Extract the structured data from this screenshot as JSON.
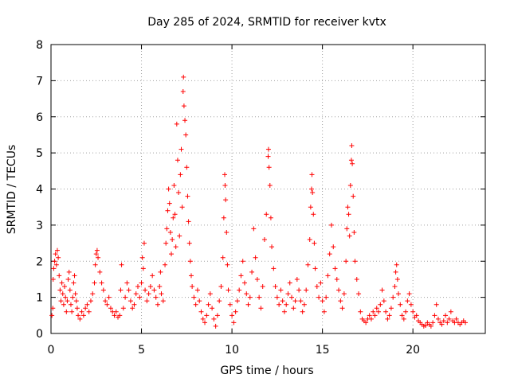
{
  "chart_data": {
    "type": "scatter",
    "title": "Day 285 of 2024, SRMTID for receiver kvtx",
    "xlabel": "GPS time / hours",
    "ylabel": "SRMTID / TECUs",
    "xlim": [
      0,
      24
    ],
    "ylim": [
      0,
      8
    ],
    "xticks": [
      0,
      5,
      10,
      15,
      20
    ],
    "yticks": [
      0,
      1,
      2,
      3,
      4,
      5,
      6,
      7,
      8
    ],
    "grid": true,
    "marker": "plus",
    "marker_color": "#ff0000",
    "series": [
      {
        "name": "SRMTID",
        "points": [
          [
            0.05,
            0.5
          ],
          [
            0.1,
            0.7
          ],
          [
            0.12,
            1.5
          ],
          [
            0.15,
            1.8
          ],
          [
            0.2,
            2.0
          ],
          [
            0.25,
            2.2
          ],
          [
            0.3,
            1.9
          ],
          [
            0.35,
            2.3
          ],
          [
            0.4,
            2.1
          ],
          [
            0.45,
            1.6
          ],
          [
            0.5,
            1.2
          ],
          [
            0.55,
            0.9
          ],
          [
            0.6,
            1.4
          ],
          [
            0.65,
            1.1
          ],
          [
            0.7,
            0.8
          ],
          [
            0.75,
            1.3
          ],
          [
            0.8,
            1.0
          ],
          [
            0.85,
            0.6
          ],
          [
            0.9,
            0.9
          ],
          [
            0.95,
            1.5
          ],
          [
            1.0,
            1.7
          ],
          [
            1.05,
            1.2
          ],
          [
            1.1,
            0.8
          ],
          [
            1.15,
            0.6
          ],
          [
            1.2,
            1.0
          ],
          [
            1.25,
            1.4
          ],
          [
            1.3,
            1.6
          ],
          [
            1.35,
            1.1
          ],
          [
            1.4,
            0.9
          ],
          [
            1.45,
            0.7
          ],
          [
            1.5,
            0.5
          ],
          [
            1.6,
            0.4
          ],
          [
            1.7,
            0.6
          ],
          [
            1.8,
            0.5
          ],
          [
            1.9,
            0.7
          ],
          [
            2.0,
            0.8
          ],
          [
            2.1,
            0.6
          ],
          [
            2.2,
            0.9
          ],
          [
            2.3,
            1.1
          ],
          [
            2.4,
            1.4
          ],
          [
            2.45,
            1.9
          ],
          [
            2.5,
            2.2
          ],
          [
            2.55,
            2.3
          ],
          [
            2.6,
            2.1
          ],
          [
            2.7,
            1.7
          ],
          [
            2.8,
            1.4
          ],
          [
            2.9,
            1.2
          ],
          [
            3.0,
            0.9
          ],
          [
            3.1,
            0.8
          ],
          [
            3.2,
            1.0
          ],
          [
            3.3,
            0.7
          ],
          [
            3.4,
            0.6
          ],
          [
            3.5,
            0.5
          ],
          [
            3.6,
            0.6
          ],
          [
            3.7,
            0.45
          ],
          [
            3.8,
            0.5
          ],
          [
            3.85,
            1.2
          ],
          [
            3.9,
            1.9
          ],
          [
            4.0,
            0.7
          ],
          [
            4.1,
            1.0
          ],
          [
            4.2,
            1.4
          ],
          [
            4.3,
            1.2
          ],
          [
            4.4,
            0.9
          ],
          [
            4.5,
            0.7
          ],
          [
            4.6,
            0.8
          ],
          [
            4.7,
            1.1
          ],
          [
            4.8,
            1.3
          ],
          [
            4.9,
            1.0
          ],
          [
            5.0,
            1.4
          ],
          [
            5.05,
            2.1
          ],
          [
            5.1,
            1.8
          ],
          [
            5.15,
            2.5
          ],
          [
            5.2,
            1.2
          ],
          [
            5.3,
            0.9
          ],
          [
            5.4,
            1.1
          ],
          [
            5.5,
            1.3
          ],
          [
            5.6,
            1.6
          ],
          [
            5.7,
            1.2
          ],
          [
            5.8,
            1.0
          ],
          [
            5.9,
            0.8
          ],
          [
            6.0,
            1.3
          ],
          [
            6.05,
            1.7
          ],
          [
            6.1,
            1.1
          ],
          [
            6.2,
            0.9
          ],
          [
            6.3,
            1.9
          ],
          [
            6.35,
            2.5
          ],
          [
            6.4,
            2.9
          ],
          [
            6.45,
            3.4
          ],
          [
            6.5,
            4.0
          ],
          [
            6.55,
            3.6
          ],
          [
            6.6,
            2.8
          ],
          [
            6.65,
            2.2
          ],
          [
            6.7,
            2.6
          ],
          [
            6.75,
            3.2
          ],
          [
            6.8,
            4.1
          ],
          [
            6.85,
            3.3
          ],
          [
            6.9,
            2.4
          ],
          [
            6.95,
            5.8
          ],
          [
            7.0,
            4.8
          ],
          [
            7.05,
            3.9
          ],
          [
            7.1,
            2.7
          ],
          [
            7.15,
            4.4
          ],
          [
            7.2,
            5.1
          ],
          [
            7.25,
            3.5
          ],
          [
            7.3,
            6.7
          ],
          [
            7.32,
            7.1
          ],
          [
            7.35,
            6.3
          ],
          [
            7.4,
            5.9
          ],
          [
            7.45,
            5.5
          ],
          [
            7.5,
            4.6
          ],
          [
            7.55,
            3.8
          ],
          [
            7.6,
            3.1
          ],
          [
            7.65,
            2.5
          ],
          [
            7.7,
            2.0
          ],
          [
            7.75,
            1.6
          ],
          [
            7.8,
            1.3
          ],
          [
            7.9,
            1.0
          ],
          [
            8.0,
            0.8
          ],
          [
            8.1,
            1.2
          ],
          [
            8.2,
            0.9
          ],
          [
            8.3,
            0.6
          ],
          [
            8.4,
            0.4
          ],
          [
            8.5,
            0.3
          ],
          [
            8.6,
            0.5
          ],
          [
            8.7,
            0.8
          ],
          [
            8.8,
            1.1
          ],
          [
            8.9,
            0.7
          ],
          [
            9.0,
            0.4
          ],
          [
            9.1,
            0.2
          ],
          [
            9.2,
            0.5
          ],
          [
            9.3,
            0.9
          ],
          [
            9.4,
            1.3
          ],
          [
            9.5,
            2.1
          ],
          [
            9.55,
            3.2
          ],
          [
            9.6,
            4.4
          ],
          [
            9.62,
            4.1
          ],
          [
            9.65,
            3.7
          ],
          [
            9.7,
            2.8
          ],
          [
            9.75,
            1.9
          ],
          [
            9.8,
            1.2
          ],
          [
            9.9,
            0.8
          ],
          [
            10.0,
            0.5
          ],
          [
            10.1,
            0.3
          ],
          [
            10.2,
            0.6
          ],
          [
            10.3,
            0.9
          ],
          [
            10.4,
            1.2
          ],
          [
            10.5,
            1.6
          ],
          [
            10.6,
            2.0
          ],
          [
            10.7,
            1.4
          ],
          [
            10.8,
            1.1
          ],
          [
            10.9,
            0.8
          ],
          [
            11.0,
            1.0
          ],
          [
            11.1,
            1.7
          ],
          [
            11.2,
            2.9
          ],
          [
            11.3,
            2.1
          ],
          [
            11.4,
            1.5
          ],
          [
            11.5,
            1.0
          ],
          [
            11.6,
            0.7
          ],
          [
            11.7,
            1.3
          ],
          [
            11.8,
            2.6
          ],
          [
            11.9,
            3.3
          ],
          [
            12.0,
            4.9
          ],
          [
            12.02,
            5.1
          ],
          [
            12.05,
            4.6
          ],
          [
            12.1,
            4.1
          ],
          [
            12.15,
            3.2
          ],
          [
            12.2,
            2.4
          ],
          [
            12.3,
            1.8
          ],
          [
            12.4,
            1.3
          ],
          [
            12.5,
            1.0
          ],
          [
            12.6,
            0.8
          ],
          [
            12.7,
            1.2
          ],
          [
            12.8,
            0.9
          ],
          [
            12.9,
            0.6
          ],
          [
            13.0,
            0.8
          ],
          [
            13.1,
            1.1
          ],
          [
            13.2,
            1.4
          ],
          [
            13.3,
            1.0
          ],
          [
            13.4,
            0.7
          ],
          [
            13.5,
            0.9
          ],
          [
            13.6,
            1.5
          ],
          [
            13.7,
            1.2
          ],
          [
            13.8,
            0.9
          ],
          [
            13.9,
            0.6
          ],
          [
            14.0,
            0.8
          ],
          [
            14.1,
            1.2
          ],
          [
            14.2,
            1.9
          ],
          [
            14.3,
            2.6
          ],
          [
            14.35,
            3.5
          ],
          [
            14.4,
            4.0
          ],
          [
            14.42,
            4.4
          ],
          [
            14.45,
            3.9
          ],
          [
            14.5,
            3.3
          ],
          [
            14.55,
            2.5
          ],
          [
            14.6,
            1.8
          ],
          [
            14.7,
            1.3
          ],
          [
            14.8,
            1.0
          ],
          [
            14.9,
            1.4
          ],
          [
            15.0,
            0.9
          ],
          [
            15.1,
            0.6
          ],
          [
            15.2,
            1.0
          ],
          [
            15.3,
            1.6
          ],
          [
            15.4,
            2.2
          ],
          [
            15.5,
            3.0
          ],
          [
            15.6,
            2.4
          ],
          [
            15.7,
            1.8
          ],
          [
            15.8,
            1.5
          ],
          [
            15.9,
            1.2
          ],
          [
            16.0,
            0.9
          ],
          [
            16.1,
            0.7
          ],
          [
            16.2,
            1.1
          ],
          [
            16.3,
            2.0
          ],
          [
            16.35,
            2.9
          ],
          [
            16.4,
            3.5
          ],
          [
            16.45,
            3.3
          ],
          [
            16.5,
            2.7
          ],
          [
            16.55,
            4.1
          ],
          [
            16.6,
            4.8
          ],
          [
            16.62,
            5.2
          ],
          [
            16.65,
            4.7
          ],
          [
            16.7,
            3.8
          ],
          [
            16.75,
            2.8
          ],
          [
            16.8,
            2.0
          ],
          [
            16.9,
            1.5
          ],
          [
            17.0,
            1.1
          ],
          [
            17.1,
            0.6
          ],
          [
            17.2,
            0.4
          ],
          [
            17.3,
            0.35
          ],
          [
            17.4,
            0.3
          ],
          [
            17.5,
            0.4
          ],
          [
            17.6,
            0.5
          ],
          [
            17.7,
            0.4
          ],
          [
            17.8,
            0.6
          ],
          [
            17.9,
            0.5
          ],
          [
            18.0,
            0.7
          ],
          [
            18.1,
            0.6
          ],
          [
            18.2,
            0.8
          ],
          [
            18.3,
            1.2
          ],
          [
            18.4,
            0.9
          ],
          [
            18.5,
            0.6
          ],
          [
            18.6,
            0.4
          ],
          [
            18.7,
            0.5
          ],
          [
            18.8,
            0.7
          ],
          [
            18.9,
            1.0
          ],
          [
            19.0,
            1.3
          ],
          [
            19.05,
            1.7
          ],
          [
            19.1,
            1.9
          ],
          [
            19.15,
            1.5
          ],
          [
            19.2,
            1.1
          ],
          [
            19.3,
            0.8
          ],
          [
            19.4,
            0.5
          ],
          [
            19.5,
            0.4
          ],
          [
            19.6,
            0.6
          ],
          [
            19.7,
            0.9
          ],
          [
            19.8,
            1.1
          ],
          [
            19.9,
            0.8
          ],
          [
            20.0,
            0.6
          ],
          [
            20.1,
            0.45
          ],
          [
            20.2,
            0.5
          ],
          [
            20.3,
            0.35
          ],
          [
            20.4,
            0.3
          ],
          [
            20.5,
            0.25
          ],
          [
            20.6,
            0.2
          ],
          [
            20.7,
            0.22
          ],
          [
            20.8,
            0.3
          ],
          [
            20.9,
            0.25
          ],
          [
            21.0,
            0.2
          ],
          [
            21.1,
            0.3
          ],
          [
            21.2,
            0.5
          ],
          [
            21.3,
            0.8
          ],
          [
            21.4,
            0.4
          ],
          [
            21.5,
            0.3
          ],
          [
            21.6,
            0.25
          ],
          [
            21.7,
            0.35
          ],
          [
            21.8,
            0.5
          ],
          [
            21.9,
            0.3
          ],
          [
            22.0,
            0.4
          ],
          [
            22.1,
            0.6
          ],
          [
            22.2,
            0.35
          ],
          [
            22.3,
            0.3
          ],
          [
            22.4,
            0.4
          ],
          [
            22.5,
            0.3
          ],
          [
            22.6,
            0.25
          ],
          [
            22.7,
            0.3
          ],
          [
            22.8,
            0.35
          ],
          [
            22.9,
            0.3
          ]
        ]
      }
    ]
  }
}
